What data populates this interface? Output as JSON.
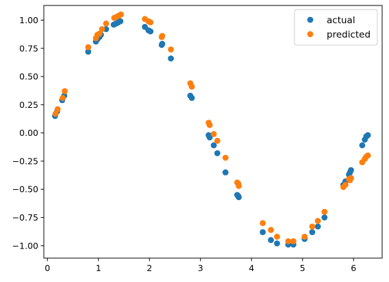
{
  "chart_data": {
    "type": "scatter",
    "title": "",
    "xlabel": "",
    "ylabel": "",
    "xlim": [
      -0.07,
      6.56
    ],
    "ylim": [
      -1.11,
      1.13
    ],
    "xticks": [
      0,
      1,
      2,
      3,
      4,
      5,
      6
    ],
    "xtick_labels": [
      "0",
      "1",
      "2",
      "3",
      "4",
      "5",
      "6"
    ],
    "yticks": [
      -1.0,
      -0.75,
      -0.5,
      -0.25,
      0.0,
      0.25,
      0.5,
      0.75,
      1.0
    ],
    "ytick_labels": [
      "−1.00",
      "−0.75",
      "−0.50",
      "−0.25",
      "0.00",
      "0.25",
      "0.50",
      "0.75",
      "1.00"
    ],
    "grid": false,
    "legend_position": "top-right",
    "series": [
      {
        "name": "actual",
        "color": "#1f77b4",
        "points": [
          [
            0.15,
            0.15
          ],
          [
            0.19,
            0.19
          ],
          [
            0.29,
            0.29
          ],
          [
            0.33,
            0.33
          ],
          [
            0.8,
            0.72
          ],
          [
            0.95,
            0.81
          ],
          [
            0.98,
            0.83
          ],
          [
            1.02,
            0.85
          ],
          [
            1.05,
            0.87
          ],
          [
            1.15,
            0.92
          ],
          [
            1.3,
            0.96
          ],
          [
            1.35,
            0.97
          ],
          [
            1.39,
            0.98
          ],
          [
            1.43,
            0.99
          ],
          [
            1.91,
            0.94
          ],
          [
            1.98,
            0.91
          ],
          [
            2.02,
            0.9
          ],
          [
            2.24,
            0.78
          ],
          [
            2.25,
            0.79
          ],
          [
            2.42,
            0.66
          ],
          [
            2.8,
            0.33
          ],
          [
            2.83,
            0.31
          ],
          [
            3.16,
            -0.02
          ],
          [
            3.18,
            -0.04
          ],
          [
            3.26,
            -0.11
          ],
          [
            3.33,
            -0.18
          ],
          [
            3.49,
            -0.35
          ],
          [
            3.72,
            -0.55
          ],
          [
            3.74,
            -0.56
          ],
          [
            3.75,
            -0.57
          ],
          [
            4.22,
            -0.88
          ],
          [
            4.38,
            -0.95
          ],
          [
            4.5,
            -0.98
          ],
          [
            4.72,
            -0.99
          ],
          [
            4.82,
            -0.99
          ],
          [
            5.04,
            -0.94
          ],
          [
            5.19,
            -0.88
          ],
          [
            5.3,
            -0.83
          ],
          [
            5.43,
            -0.75
          ],
          [
            5.8,
            -0.46
          ],
          [
            5.84,
            -0.43
          ],
          [
            5.91,
            -0.37
          ],
          [
            5.93,
            -0.35
          ],
          [
            5.95,
            -0.33
          ],
          [
            6.17,
            -0.11
          ],
          [
            6.22,
            -0.06
          ],
          [
            6.25,
            -0.03
          ],
          [
            6.28,
            -0.02
          ]
        ]
      },
      {
        "name": "predicted",
        "color": "#ff7f0e",
        "points": [
          [
            0.16,
            0.17
          ],
          [
            0.2,
            0.21
          ],
          [
            0.3,
            0.31
          ],
          [
            0.34,
            0.37
          ],
          [
            0.8,
            0.76
          ],
          [
            0.95,
            0.84
          ],
          [
            0.98,
            0.87
          ],
          [
            1.02,
            0.88
          ],
          [
            1.07,
            0.92
          ],
          [
            1.15,
            0.97
          ],
          [
            1.31,
            1.02
          ],
          [
            1.36,
            1.03
          ],
          [
            1.4,
            1.04
          ],
          [
            1.44,
            1.05
          ],
          [
            1.91,
            1.01
          ],
          [
            1.98,
            0.99
          ],
          [
            2.02,
            0.98
          ],
          [
            2.24,
            0.85
          ],
          [
            2.25,
            0.86
          ],
          [
            2.42,
            0.74
          ],
          [
            2.8,
            0.44
          ],
          [
            2.83,
            0.41
          ],
          [
            3.16,
            0.09
          ],
          [
            3.18,
            0.07
          ],
          [
            3.26,
            -0.01
          ],
          [
            3.33,
            -0.07
          ],
          [
            3.49,
            -0.22
          ],
          [
            3.72,
            -0.44
          ],
          [
            3.74,
            -0.45
          ],
          [
            3.75,
            -0.47
          ],
          [
            4.22,
            -0.8
          ],
          [
            4.38,
            -0.86
          ],
          [
            4.5,
            -0.92
          ],
          [
            4.72,
            -0.96
          ],
          [
            4.82,
            -0.96
          ],
          [
            5.04,
            -0.92
          ],
          [
            5.19,
            -0.83
          ],
          [
            5.3,
            -0.78
          ],
          [
            5.43,
            -0.7
          ],
          [
            5.8,
            -0.48
          ],
          [
            5.84,
            -0.46
          ],
          [
            5.91,
            -0.41
          ],
          [
            5.93,
            -0.42
          ],
          [
            5.95,
            -0.4
          ],
          [
            6.17,
            -0.26
          ],
          [
            6.22,
            -0.23
          ],
          [
            6.25,
            -0.21
          ],
          [
            6.28,
            -0.2
          ]
        ]
      }
    ]
  }
}
